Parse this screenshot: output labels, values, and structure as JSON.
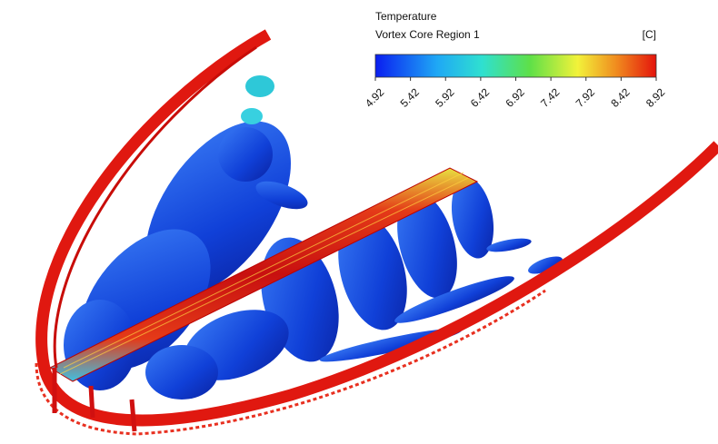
{
  "legend": {
    "title": "Temperature",
    "subtitle": "Vortex Core Region 1",
    "unit": "[C]",
    "ticks": [
      4.92,
      5.42,
      5.92,
      6.42,
      6.92,
      7.42,
      7.92,
      8.42,
      8.92
    ]
  }
}
